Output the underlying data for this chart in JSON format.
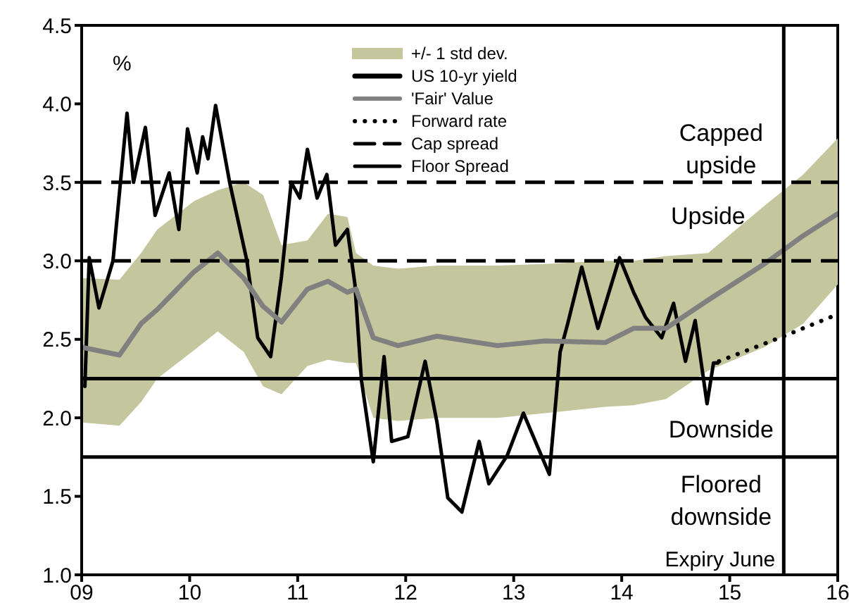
{
  "chart_data": {
    "type": "line",
    "xlim": [
      2009,
      2016
    ],
    "xticks": [
      {
        "value": 2009,
        "label": "09"
      },
      {
        "value": 2010,
        "label": "10"
      },
      {
        "value": 2011,
        "label": "11"
      },
      {
        "value": 2012,
        "label": "12"
      },
      {
        "value": 2013,
        "label": "13"
      },
      {
        "value": 2014,
        "label": "14"
      },
      {
        "value": 2015,
        "label": "15"
      },
      {
        "value": 2016,
        "label": "16"
      }
    ],
    "ylim": [
      1,
      4.5
    ],
    "yticks": [
      {
        "value": 1,
        "label": "1.0"
      },
      1.5,
      {
        "value": 2,
        "label": "2.0"
      },
      2.5,
      {
        "value": 3,
        "label": "3.0"
      },
      3.5,
      {
        "value": 4,
        "label": "4.0"
      },
      4.5
    ],
    "grid": false,
    "legend": "top",
    "marker": "none",
    "series": [
      {
        "name": "US 10-yr yield",
        "type": "line",
        "color": "#000000",
        "line_style": "solid",
        "x": [
          2009.03,
          2009.07,
          2009.16,
          2009.29,
          2009.42,
          2009.48,
          2009.59,
          2009.68,
          2009.81,
          2009.9,
          2009.98,
          2010.07,
          2010.12,
          2010.17,
          2010.24,
          2010.37,
          2010.53,
          2010.63,
          2010.75,
          2010.85,
          2010.94,
          2011.02,
          2011.09,
          2011.18,
          2011.27,
          2011.35,
          2011.46,
          2011.53,
          2011.59,
          2011.7,
          2011.8,
          2011.87,
          2012.02,
          2012.18,
          2012.29,
          2012.39,
          2012.52,
          2012.68,
          2012.77,
          2012.94,
          2013.09,
          2013.33,
          2013.43,
          2013.5,
          2013.63,
          2013.78,
          2013.98,
          2014.11,
          2014.22,
          2014.37,
          2014.48,
          2014.59,
          2014.68,
          2014.79,
          2014.85,
          2014.89
        ],
        "values": [
          2.2,
          3.02,
          2.7,
          3,
          3.94,
          3.5,
          3.85,
          3.29,
          3.56,
          3.2,
          3.84,
          3.56,
          3.79,
          3.65,
          3.99,
          3.5,
          3,
          2.51,
          2.39,
          2.9,
          3.5,
          3.4,
          3.71,
          3.4,
          3.55,
          3.1,
          3.2,
          2.85,
          2.24,
          1.72,
          2.39,
          1.85,
          1.88,
          2.36,
          1.97,
          1.49,
          1.4,
          1.85,
          1.58,
          1.76,
          2.03,
          1.64,
          2.42,
          2.6,
          2.96,
          2.57,
          3.02,
          2.8,
          2.64,
          2.51,
          2.73,
          2.36,
          2.62,
          2.09,
          2.35,
          2.35
        ]
      },
      {
        "name": "'Fair' Value",
        "type": "line",
        "color": "#808080",
        "line_style": "solid",
        "x": [
          2009,
          2009.35,
          2009.55,
          2009.7,
          2010.04,
          2010.26,
          2010.5,
          2010.68,
          2010.85,
          2011.09,
          2011.28,
          2011.46,
          2011.54,
          2011.7,
          2011.93,
          2012.29,
          2012.85,
          2013.29,
          2013.85,
          2014.11,
          2014.41,
          2014.8,
          2015.32,
          2015.68,
          2016
        ],
        "values": [
          2.45,
          2.4,
          2.6,
          2.69,
          2.93,
          3.05,
          2.89,
          2.71,
          2.61,
          2.82,
          2.87,
          2.8,
          2.82,
          2.51,
          2.46,
          2.52,
          2.46,
          2.49,
          2.48,
          2.57,
          2.57,
          2.75,
          2.98,
          3.16,
          3.3
        ],
        "upper": [
          2.89,
          2.88,
          3.05,
          3.2,
          3.38,
          3.45,
          3.5,
          3.42,
          3.1,
          3.13,
          3.3,
          3.28,
          3.05,
          2.97,
          2.95,
          2.97,
          2.97,
          2.98,
          3,
          3,
          3.03,
          3.05,
          3.35,
          3.55,
          3.78
        ],
        "lower": [
          1.97,
          1.95,
          2.1,
          2.25,
          2.43,
          2.55,
          2.42,
          2.2,
          2.15,
          2.33,
          2.37,
          2.35,
          2.35,
          2,
          1.98,
          2,
          2,
          2.03,
          2.07,
          2.08,
          2.12,
          2.3,
          2.45,
          2.6,
          2.85
        ]
      },
      {
        "name": "Forward rate",
        "type": "line",
        "color": "#000000",
        "line_style": "dotted",
        "x": [
          2014.9,
          2015.5,
          2016
        ],
        "values": [
          2.36,
          2.52,
          2.66
        ]
      }
    ],
    "ref_lines": [
      {
        "axis": "y",
        "value": 3.5,
        "label": "Cap spread",
        "line_style": "dashed",
        "color": "#000000"
      },
      {
        "axis": "y",
        "value": 3,
        "line_style": "dashed",
        "color": "#000000"
      },
      {
        "axis": "y",
        "value": 2.25,
        "label": "Floor Spread",
        "line_style": "solid",
        "color": "#000000"
      },
      {
        "axis": "y",
        "value": 1.75,
        "line_style": "solid",
        "color": "#000000"
      },
      {
        "axis": "x",
        "value": 2015.5,
        "label": "Expiry June",
        "line_style": "solid",
        "color": "#000000"
      }
    ],
    "annotations": [
      "%",
      "+/- 1 std dev.",
      "Capped upside",
      "Upside",
      "Downside",
      "Floored downside"
    ]
  }
}
